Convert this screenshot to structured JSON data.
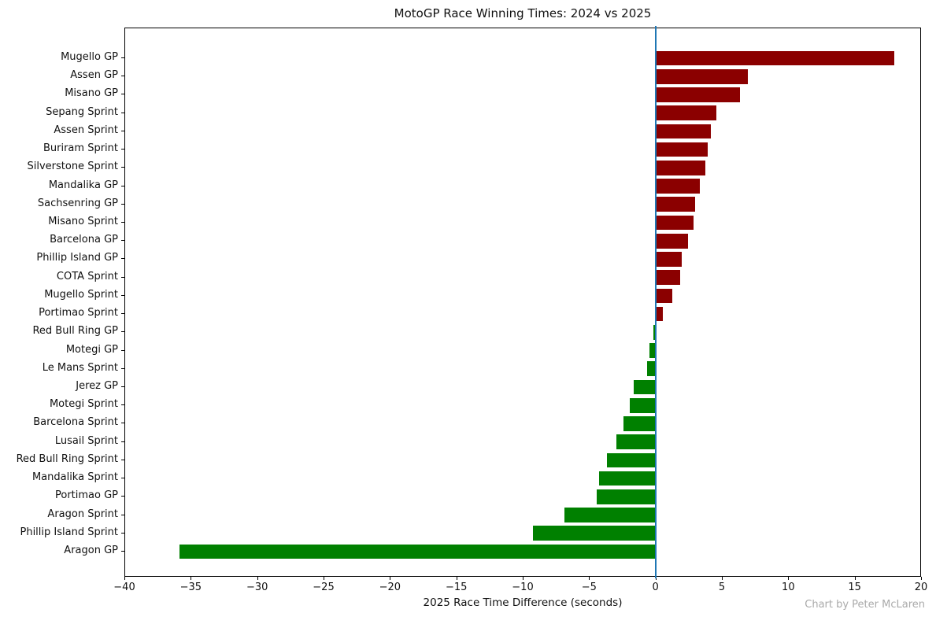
{
  "title": "MotoGP Race Winning Times: 2024 vs 2025",
  "xlabel": "2025 Race Time Difference (seconds)",
  "attribution": "Chart by Peter McLaren",
  "chart_data": {
    "type": "bar",
    "orientation": "horizontal",
    "title": "MotoGP Race Winning Times: 2024 vs 2025",
    "xlabel": "2025 Race Time Difference (seconds)",
    "ylabel": "",
    "grid": false,
    "legend": false,
    "xlim": [
      -40,
      20
    ],
    "xticks": [
      -40,
      -35,
      -30,
      -25,
      -20,
      -15,
      -10,
      -5,
      0,
      5,
      10,
      15,
      20
    ],
    "xtick_labels": [
      "−40",
      "−35",
      "−30",
      "−25",
      "−20",
      "−15",
      "−10",
      "−5",
      "0",
      "5",
      "10",
      "15",
      "20"
    ],
    "categories": [
      "Mugello GP",
      "Assen GP",
      "Misano GP",
      "Sepang Sprint",
      "Assen Sprint",
      "Buriram Sprint",
      "Silverstone Sprint",
      "Mandalika GP",
      "Sachsenring GP",
      "Misano Sprint",
      "Barcelona GP",
      "Phillip Island GP",
      "COTA Sprint",
      "Mugello Sprint",
      "Portimao Sprint",
      "Red Bull Ring GP",
      "Motegi GP",
      "Le Mans Sprint",
      "Jerez GP",
      "Motegi Sprint",
      "Barcelona Sprint",
      "Lusail Sprint",
      "Red Bull Ring Sprint",
      "Mandalika Sprint",
      "Portimao GP",
      "Aragon Sprint",
      "Phillip Island Sprint",
      "Aragon GP"
    ],
    "values": [
      17.9,
      6.9,
      6.3,
      4.5,
      4.1,
      3.9,
      3.7,
      3.3,
      2.9,
      2.8,
      2.4,
      1.9,
      1.8,
      1.2,
      0.5,
      -0.2,
      -0.5,
      -0.7,
      -1.7,
      -2.0,
      -2.5,
      -3.0,
      -3.7,
      -4.3,
      -4.5,
      -6.9,
      -9.3,
      -35.9
    ],
    "positive_color": "#8b0000",
    "negative_color": "#008000",
    "zero_line_color": "#1f77b4",
    "spine_color": "#000000"
  }
}
